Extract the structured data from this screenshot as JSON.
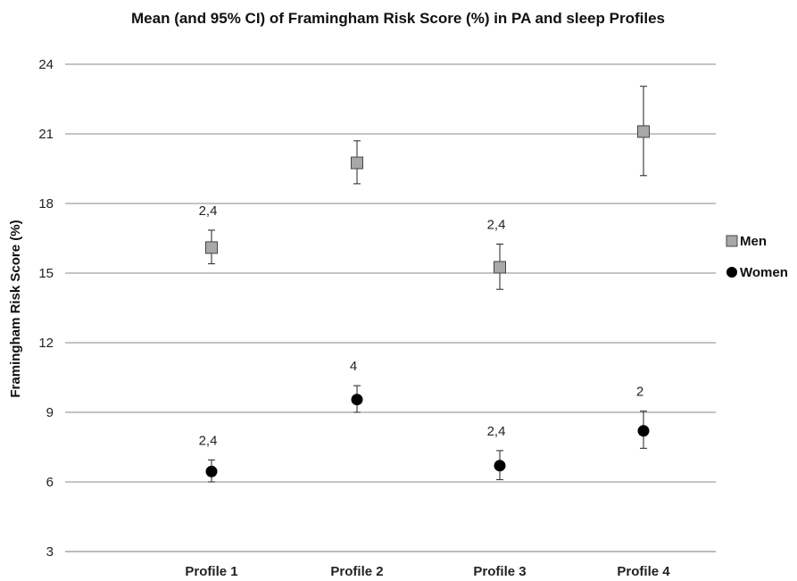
{
  "chart_data": {
    "type": "scatter",
    "title": "Mean (and 95% CI) of Framingham Risk Score (%) in PA and sleep Profiles",
    "xlabel": "",
    "ylabel": "Framingham Risk Score (%)",
    "categories": [
      "Profile 1",
      "Profile 2",
      "Profile 3",
      "Profile 4"
    ],
    "ylim": [
      3,
      24
    ],
    "yticks": [
      3,
      6,
      9,
      12,
      15,
      18,
      21,
      24
    ],
    "grid": "horizontal",
    "legend_position": "right",
    "series": [
      {
        "name": "Men",
        "marker": "square",
        "color": "#a8a8a8",
        "values": [
          16.1,
          19.75,
          15.25,
          21.1
        ],
        "ci_low": [
          15.4,
          18.85,
          14.3,
          19.2
        ],
        "ci_high": [
          16.85,
          20.7,
          16.25,
          23.05
        ],
        "annotations": [
          "2,4",
          "",
          "2,4",
          ""
        ]
      },
      {
        "name": "Women",
        "marker": "circle",
        "color": "#000000",
        "values": [
          6.45,
          9.55,
          6.7,
          8.2
        ],
        "ci_low": [
          6.0,
          9.0,
          6.1,
          7.45
        ],
        "ci_high": [
          6.95,
          10.15,
          7.35,
          9.05
        ],
        "annotations": [
          "2,4",
          "4",
          "2,4",
          "2"
        ]
      }
    ]
  }
}
